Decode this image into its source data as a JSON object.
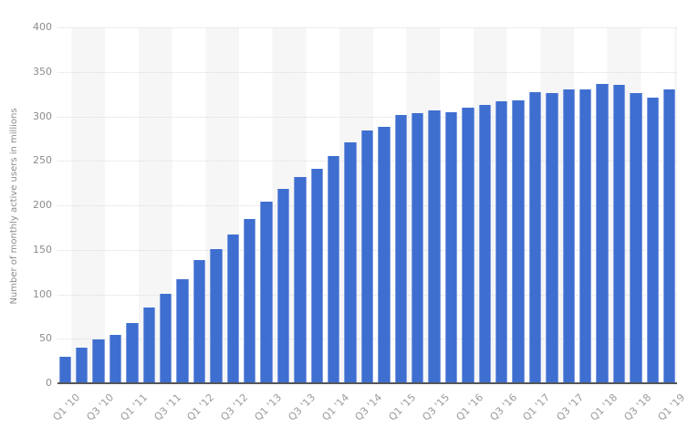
{
  "chart": {
    "y_axis": {
      "title": "Number of monthly active users in millions",
      "ticks": [
        400,
        350,
        300,
        250,
        200,
        150,
        100,
        50,
        0
      ]
    },
    "x_axis": {
      "tick_labels": [
        "Q1 '10",
        "Q3 '10",
        "Q1 '11",
        "Q3 '11",
        "Q1 '12",
        "Q3 '12",
        "Q1 '13",
        "Q3 '13",
        "Q1 '14",
        "Q3 '14",
        "Q1 '15",
        "Q3 '15",
        "Q1 '16",
        "Q3 '16",
        "Q1 '17",
        "Q3 '17",
        "Q1 '18",
        "Q3 '18",
        "Q1 '19"
      ]
    },
    "colors": {
      "bar": "#3e6fd0",
      "bar_edge": "#7d9bdf",
      "gridline": "#dcdcdc",
      "axis_line": "#55565a",
      "y_tick_text": "#8c8c8c",
      "x_tick_text": "#9b9b9b",
      "stripe": "#f6f6f7"
    }
  },
  "chart_data": {
    "type": "bar",
    "title": "",
    "categories": [
      "Q1 '10",
      "Q2 '10",
      "Q3 '10",
      "Q4 '10",
      "Q1 '11",
      "Q2 '11",
      "Q3 '11",
      "Q4 '11",
      "Q1 '12",
      "Q2 '12",
      "Q3 '12",
      "Q4 '12",
      "Q1 '13",
      "Q2 '13",
      "Q3 '13",
      "Q4 '13",
      "Q1 '14",
      "Q2 '14",
      "Q3 '14",
      "Q4 '14",
      "Q1 '15",
      "Q2 '15",
      "Q3 '15",
      "Q4 '15",
      "Q1 '16",
      "Q2 '16",
      "Q3 '16",
      "Q4 '16",
      "Q1 '17",
      "Q2 '17",
      "Q3 '17",
      "Q4 '17",
      "Q1 '18",
      "Q2 '18",
      "Q3 '18",
      "Q4 '18",
      "Q1 '19"
    ],
    "values": [
      30,
      40,
      49,
      54,
      68,
      85,
      101,
      117,
      138,
      151,
      167,
      185,
      204,
      218,
      232,
      241,
      255,
      271,
      284,
      288,
      302,
      304,
      307,
      305,
      310,
      313,
      317,
      318,
      327,
      326,
      330,
      330,
      336,
      335,
      326,
      321,
      330
    ],
    "xlabel": "",
    "ylabel": "Number of monthly active users in millions",
    "ylim": [
      0,
      400
    ],
    "y_tick_step": 50,
    "grid": "horizontal dotted",
    "legend_position": "none",
    "x_tick_every": 2
  }
}
